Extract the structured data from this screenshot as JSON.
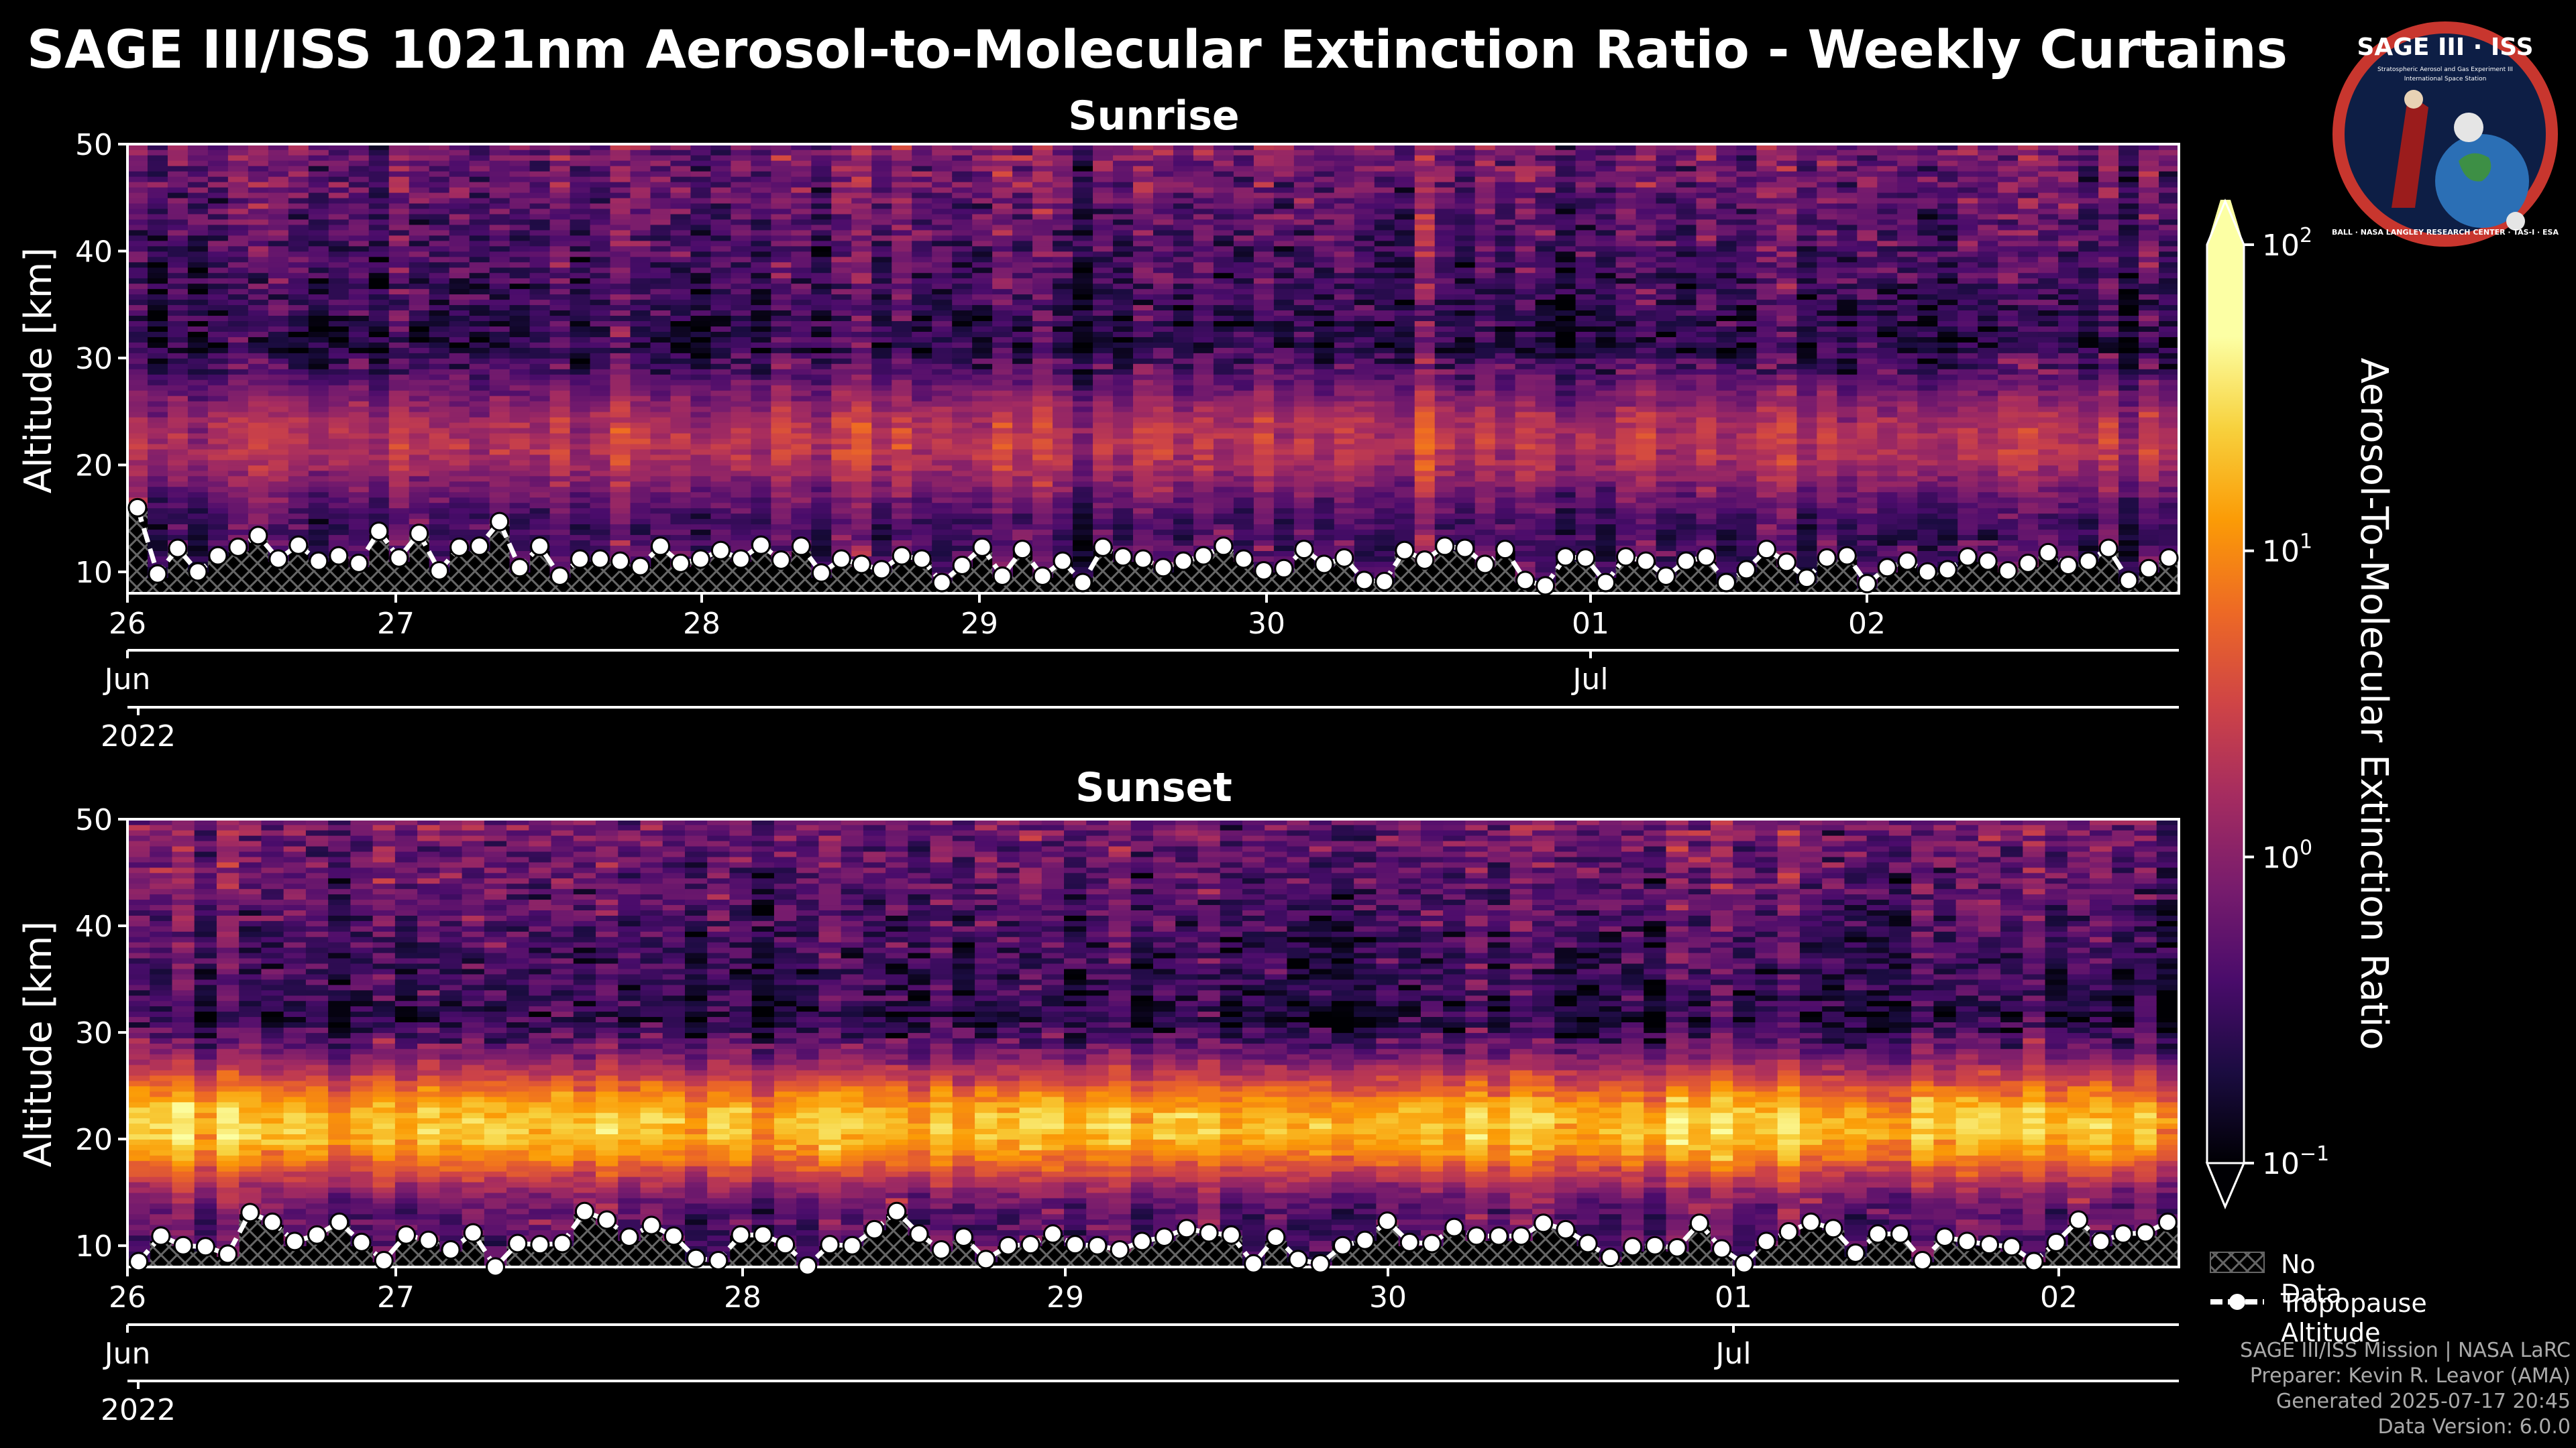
{
  "header": {
    "title": "SAGE III/ISS 1021nm Aerosol-to-Molecular Extinction Ratio - Weekly Curtains"
  },
  "logo": {
    "text": "SAGE III · ISS",
    "sub1": "Stratospheric Aerosol and Gas Experiment III",
    "sub2": "International Space Station",
    "ring_text": "BALL · NASA LANGLEY RESEARCH CENTER · TAS-I · ESA"
  },
  "colors": {
    "background": "#000000",
    "text": "#ffffff",
    "footer_text": "#aaaaaa"
  },
  "chart_data": [
    {
      "type": "heatmap",
      "title": "Sunrise",
      "xlabel": "",
      "ylabel": "Altitude [km]",
      "x_date_range": [
        "2022-06-25T23:00",
        "2022-07-02T23:00"
      ],
      "ylim": [
        8,
        50
      ],
      "yticks": [
        "10",
        "20",
        "30",
        "40",
        "50"
      ],
      "day_ticks": [
        "26",
        "27",
        "28",
        "29",
        "30",
        "01",
        "02"
      ],
      "month_ticks": [
        "Jun",
        "Jul"
      ],
      "year_tick": "2022",
      "aerosol_layer_center_km": 22,
      "aerosol_layer_peak_ratio": 3,
      "tropopause_altitude_km": [
        16.0,
        9.8,
        12.2,
        10.0,
        11.5,
        12.3,
        13.4,
        11.2,
        12.5,
        11.0,
        11.5,
        10.8,
        13.8,
        11.3,
        13.6,
        10.1,
        12.3,
        12.4,
        14.7,
        10.4,
        12.4,
        9.6,
        11.2,
        11.2,
        11.0,
        10.5,
        12.4,
        10.8,
        11.2,
        12.0,
        11.2,
        12.5,
        11.1,
        12.4,
        9.9,
        11.2,
        10.7,
        10.2,
        11.5,
        11.2,
        9.0,
        10.6,
        12.3,
        9.6,
        12.1,
        9.6,
        11.0,
        9.0,
        12.3,
        11.4,
        11.2,
        10.4,
        11.0,
        11.5,
        12.4,
        11.2,
        10.1,
        10.3,
        12.1,
        10.7,
        11.3,
        9.2,
        9.1,
        12.0,
        11.1,
        12.4,
        12.2,
        10.7,
        12.1,
        9.2,
        8.7,
        11.4,
        11.3,
        9.0,
        11.4,
        11.0,
        9.6,
        11.0,
        11.4,
        9.0,
        10.2,
        12.1,
        10.9,
        9.4,
        11.3,
        11.5,
        8.9,
        10.4,
        11.0,
        10.0,
        10.2,
        11.4,
        11.0,
        10.1,
        10.8,
        11.8,
        10.6,
        11.0,
        12.2,
        9.2,
        10.3,
        11.3
      ]
    },
    {
      "type": "heatmap",
      "title": "Sunset",
      "xlabel": "",
      "ylabel": "Altitude [km]",
      "x_date_range": [
        "2022-06-25T23:00",
        "2022-07-02T08:00"
      ],
      "ylim": [
        8,
        50
      ],
      "yticks": [
        "10",
        "20",
        "30",
        "40",
        "50"
      ],
      "day_ticks": [
        "26",
        "27",
        "28",
        "29",
        "30",
        "01",
        "02"
      ],
      "month_ticks": [
        "Jun",
        "Jul"
      ],
      "year_tick": "2022",
      "aerosol_layer_center_km": 21,
      "aerosol_layer_peak_ratio": 40,
      "tropopause_altitude_km": [
        8.5,
        10.9,
        10.0,
        9.9,
        9.2,
        13.1,
        12.2,
        10.4,
        11.0,
        12.2,
        10.3,
        8.6,
        11.0,
        10.5,
        9.6,
        11.2,
        8.0,
        10.2,
        10.1,
        10.2,
        13.2,
        12.4,
        10.8,
        11.9,
        10.9,
        8.8,
        8.6,
        11.0,
        11.0,
        10.1,
        8.1,
        10.1,
        10.0,
        11.5,
        13.2,
        11.1,
        9.6,
        10.8,
        8.7,
        10.0,
        10.1,
        11.1,
        10.1,
        10.0,
        9.6,
        10.4,
        10.8,
        11.6,
        11.2,
        11.0,
        8.3,
        10.8,
        8.7,
        8.3,
        10.0,
        10.5,
        12.3,
        10.3,
        10.2,
        11.7,
        10.9,
        10.9,
        10.9,
        12.1,
        11.5,
        10.2,
        8.9,
        9.9,
        10.0,
        9.8,
        12.1,
        9.7,
        8.3,
        10.4,
        11.3,
        12.2,
        11.6,
        9.3,
        11.1,
        11.1,
        8.6,
        10.8,
        10.4,
        10.1,
        9.9,
        8.5,
        10.3,
        12.4,
        10.4,
        11.1,
        11.2,
        12.2
      ]
    }
  ],
  "colorbar": {
    "label": "Aerosol-To-Molecular Extinction Ratio",
    "scale": "log",
    "range": [
      0.1,
      100
    ],
    "ticks": [
      {
        "base": "10",
        "exp": "2"
      },
      {
        "base": "10",
        "exp": "1"
      },
      {
        "base": "10",
        "exp": "0"
      },
      {
        "base": "10",
        "exp": "−1"
      }
    ],
    "colormap": "inferno"
  },
  "legend": {
    "no_data": "No Data",
    "tropopause": "Tropopause Altitude"
  },
  "footer": {
    "line1": "SAGE III/ISS Mission | NASA LaRC",
    "line2": "Preparer: Kevin R. Leavor (AMA)",
    "line3": "Generated 2025-07-17 20:45",
    "line4": "Data Version: 6.0.0"
  }
}
